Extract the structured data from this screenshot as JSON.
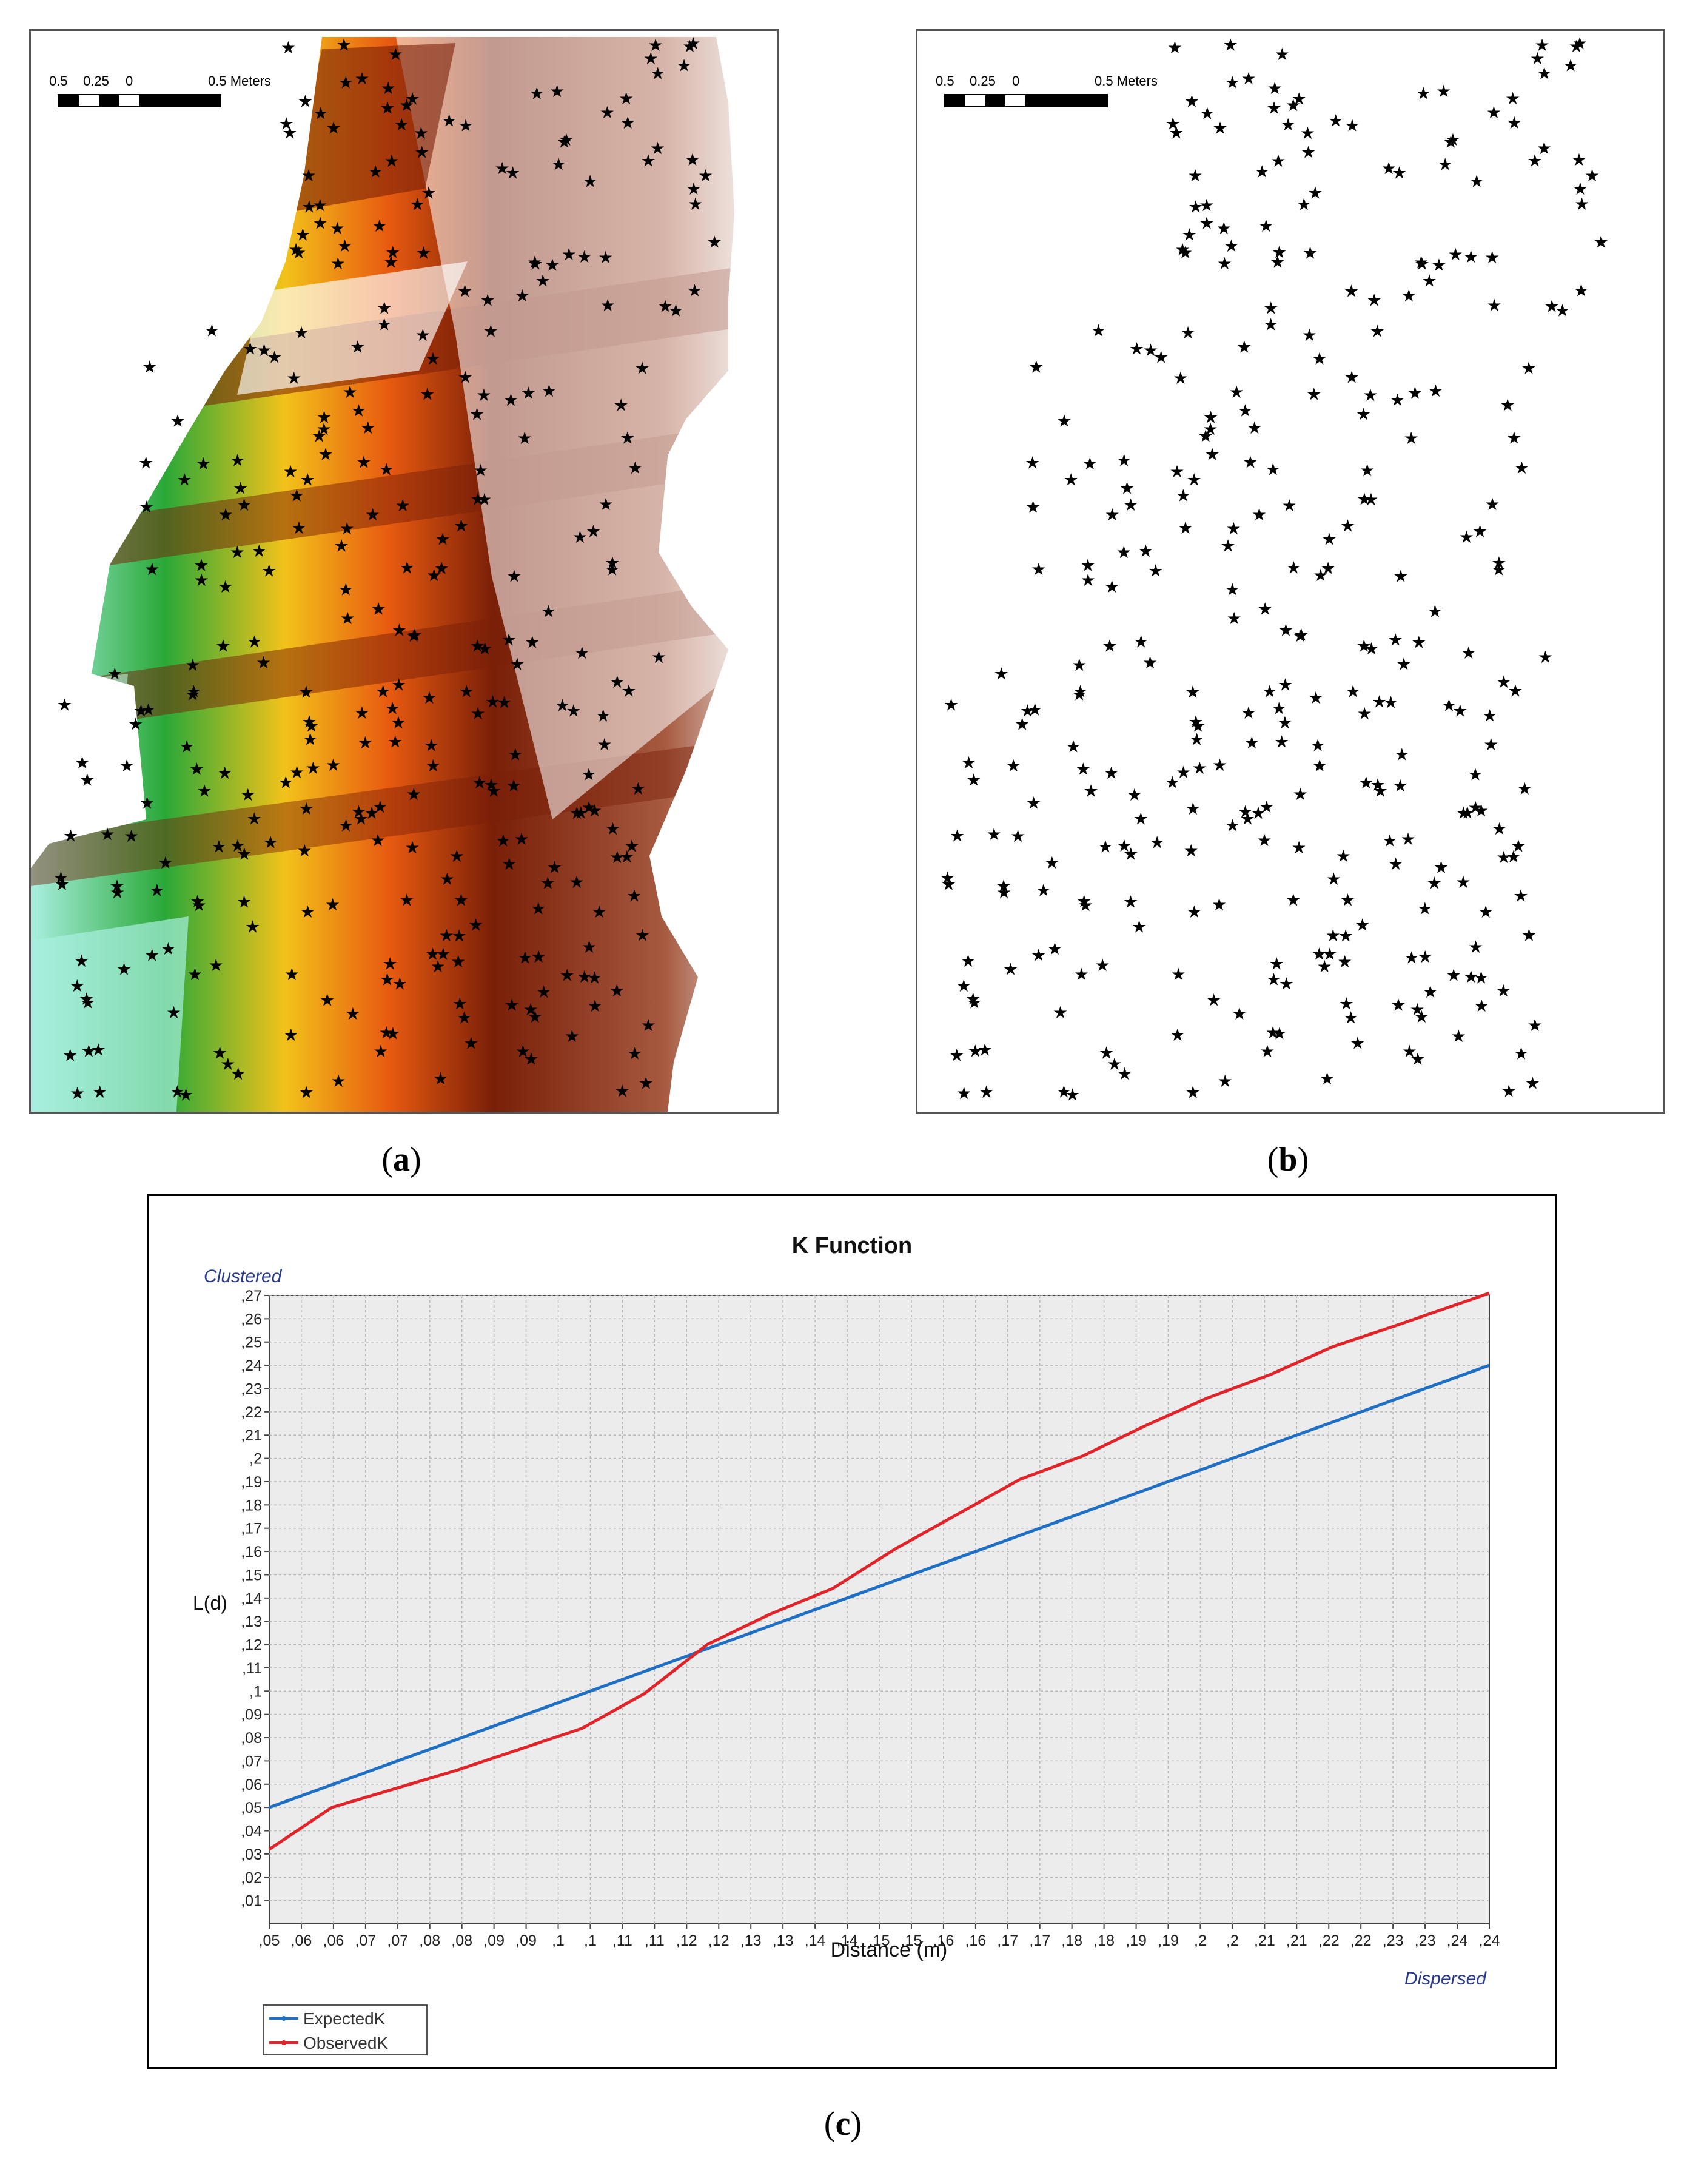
{
  "panels": {
    "a": {
      "caption_open": "(",
      "caption_letter": "a",
      "caption_close": ")",
      "scale_labels": [
        "0.5",
        "0.25",
        "0",
        "0.5 Meters"
      ],
      "colors": {
        "high": "#7a1f08",
        "mid": "#e85a10",
        "warm": "#f2c21a",
        "green": "#2aa838",
        "low": "#a8efe0",
        "rock": "#ffffff"
      }
    },
    "b": {
      "caption_open": "(",
      "caption_letter": "b",
      "caption_close": ")",
      "scale_labels": [
        "0.5",
        "0.25",
        "0",
        "0.5 Meters"
      ]
    },
    "c": {
      "caption_open": "(",
      "caption_letter": "c",
      "caption_close": ")"
    }
  },
  "chart_data": {
    "type": "line",
    "title": "K Function",
    "xlabel": "Distance (m)",
    "ylabel": "L(d)",
    "annotations": {
      "top_left": "Clustered",
      "bottom_right": "Dispersed"
    },
    "xlim": [
      0.05,
      0.245
    ],
    "ylim": [
      0,
      0.27
    ],
    "x_tick_labels": [
      ",05",
      ",06",
      ",06",
      ",07",
      ",07",
      ",08",
      ",08",
      ",09",
      ",09",
      ",1",
      ",1",
      ",11",
      ",11",
      ",12",
      ",12",
      ",13",
      ",13",
      ",14",
      ",14",
      ",15",
      ",15",
      ",16",
      ",16",
      ",17",
      ",17",
      ",18",
      ",18",
      ",19",
      ",19",
      ",2",
      ",2",
      ",21",
      ",21",
      ",22",
      ",22",
      ",23",
      ",23",
      ",24",
      ",24"
    ],
    "y_tick_labels": [
      ",01",
      ",02",
      ",03",
      ",04",
      ",05",
      ",06",
      ",07",
      ",08",
      ",09",
      ",1",
      ",11",
      ",12",
      ",13",
      ",14",
      ",15",
      ",16",
      ",17",
      ",18",
      ",19",
      ",2",
      ",21",
      ",22",
      ",23",
      ",24",
      ",25",
      ",26",
      ",27"
    ],
    "grid": true,
    "legend_position": "bottom-left",
    "colors": {
      "expected": "#1f6fc4",
      "observed": "#e0242a"
    },
    "series": [
      {
        "name": "ExpectedK",
        "x": [
          0.05,
          0.245
        ],
        "y": [
          0.05,
          0.24
        ]
      },
      {
        "name": "ObservedK",
        "x": [
          0.05,
          0.06,
          0.07,
          0.08,
          0.09,
          0.1,
          0.11,
          0.12,
          0.13,
          0.14,
          0.15,
          0.16,
          0.17,
          0.18,
          0.19,
          0.2,
          0.21,
          0.22,
          0.23,
          0.245
        ],
        "y": [
          0.032,
          0.05,
          0.058,
          0.066,
          0.075,
          0.084,
          0.099,
          0.12,
          0.133,
          0.144,
          0.161,
          0.176,
          0.191,
          0.201,
          0.214,
          0.226,
          0.236,
          0.248,
          0.257,
          0.271
        ]
      }
    ]
  }
}
